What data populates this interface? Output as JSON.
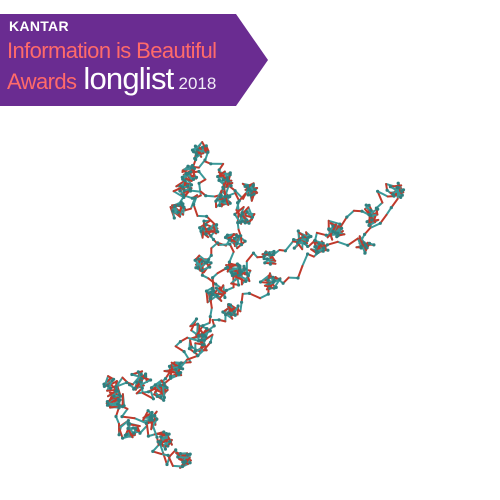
{
  "badge": {
    "brand": "KANTAR",
    "line1": "Information is Beautiful",
    "line2_word1": "Awards",
    "line2_word2": "longlist",
    "line2_year": "2018",
    "colors": {
      "background": "#6a2c91",
      "accent_text": "#ff6a6a",
      "brand_text": "#ffffff"
    }
  },
  "figure": {
    "colors": {
      "segment_a": "#c0392b",
      "segment_b": "#3a9a9a",
      "node": "#2f7f7f"
    }
  }
}
